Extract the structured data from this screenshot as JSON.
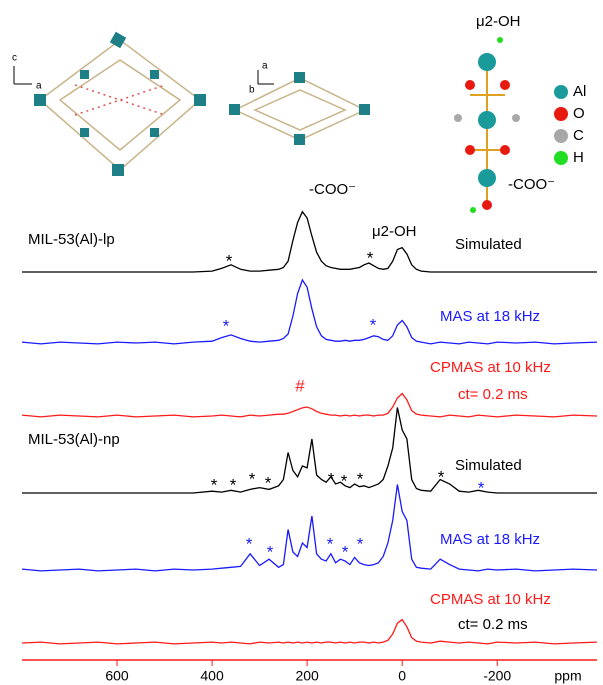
{
  "chart_data": {
    "type": "line",
    "x": [
      800,
      760,
      720,
      680,
      640,
      600,
      560,
      520,
      480,
      440,
      400,
      380,
      360,
      340,
      320,
      300,
      280,
      260,
      250,
      240,
      230,
      220,
      210,
      200,
      190,
      180,
      170,
      160,
      150,
      140,
      130,
      120,
      110,
      100,
      90,
      80,
      70,
      60,
      50,
      40,
      30,
      20,
      10,
      0,
      -10,
      -20,
      -30,
      -40,
      -60,
      -80,
      -100,
      -120,
      -140,
      -160,
      -180,
      -200,
      -240,
      -280,
      -320,
      -360,
      -410
    ],
    "xlim": [
      800,
      -410
    ],
    "xticks": [
      600,
      400,
      200,
      0,
      -200
    ],
    "xlabel": "ppm",
    "series": [
      {
        "name": "Simulated",
        "color": "#000000",
        "values": [
          0,
          0,
          0,
          0,
          0,
          0,
          0,
          0,
          0,
          0,
          1,
          4,
          8,
          3,
          1,
          1,
          2,
          3,
          5,
          12,
          35,
          55,
          67,
          60,
          40,
          22,
          12,
          7,
          5,
          4,
          3,
          3,
          3,
          4,
          5,
          8,
          10,
          7,
          4,
          3,
          4,
          12,
          25,
          27,
          20,
          8,
          3,
          1,
          0,
          0,
          0,
          0,
          0,
          0,
          0,
          0,
          0,
          0,
          0,
          0,
          0
        ]
      },
      {
        "name": "MAS at 18 kHz",
        "color": "#1a1aff",
        "values": [
          1,
          -1,
          1,
          0,
          -1,
          1,
          0,
          1,
          -1,
          1,
          2,
          6,
          9,
          5,
          2,
          1,
          2,
          3,
          5,
          10,
          30,
          55,
          70,
          62,
          38,
          18,
          8,
          4,
          3,
          2,
          2,
          3,
          2,
          3,
          3,
          4,
          6,
          8,
          7,
          4,
          3,
          8,
          20,
          25,
          18,
          6,
          2,
          1,
          -1,
          1,
          0,
          -1,
          1,
          0,
          -1,
          1,
          0,
          1,
          -1,
          0,
          1
        ]
      },
      {
        "name": "CPMAS at 10 kHz",
        "color": "#ff1a1a",
        "values": [
          1,
          -1,
          1,
          0,
          -1,
          1,
          -1,
          0,
          1,
          -1,
          0,
          1,
          0,
          -1,
          1,
          0,
          1,
          2,
          2,
          3,
          5,
          7,
          9,
          10,
          8,
          5,
          3,
          2,
          1,
          1,
          0,
          1,
          0,
          1,
          0,
          1,
          1,
          0,
          1,
          1,
          3,
          10,
          20,
          25,
          18,
          6,
          2,
          1,
          0,
          -1,
          1,
          0,
          -1,
          1,
          0,
          -1,
          1,
          0,
          -1,
          1,
          0
        ]
      },
      {
        "name": "Simulated",
        "color": "#000000",
        "values": [
          0,
          0,
          0,
          0,
          0,
          0,
          0,
          0,
          0,
          0,
          2,
          1,
          3,
          1,
          4,
          6,
          4,
          8,
          15,
          45,
          25,
          18,
          30,
          28,
          60,
          20,
          15,
          12,
          18,
          10,
          12,
          8,
          6,
          10,
          7,
          8,
          6,
          8,
          10,
          15,
          30,
          50,
          95,
          70,
          60,
          15,
          5,
          3,
          2,
          15,
          10,
          2,
          1,
          3,
          1,
          0,
          0,
          0,
          0,
          0,
          0
        ]
      },
      {
        "name": "MAS at 18 kHz",
        "color": "#1a1aff",
        "values": [
          1,
          -1,
          0,
          1,
          -1,
          0,
          1,
          -1,
          1,
          0,
          1,
          2,
          3,
          4,
          18,
          5,
          12,
          3,
          6,
          45,
          20,
          15,
          30,
          25,
          60,
          18,
          12,
          10,
          18,
          8,
          12,
          10,
          6,
          14,
          8,
          6,
          5,
          6,
          8,
          15,
          30,
          55,
          95,
          65,
          55,
          12,
          3,
          2,
          1,
          12,
          6,
          1,
          0,
          -1,
          1,
          0,
          1,
          -1,
          0,
          1,
          0
        ]
      },
      {
        "name": "CPMAS at 10 kHz",
        "color": "#ff1a1a",
        "values": [
          0,
          1,
          -1,
          0,
          1,
          -1,
          0,
          1,
          -1,
          0,
          1,
          0,
          1,
          0,
          -1,
          1,
          0,
          1,
          0,
          1,
          0,
          1,
          0,
          1,
          0,
          1,
          0,
          1,
          1,
          0,
          1,
          0,
          1,
          0,
          1,
          1,
          0,
          1,
          0,
          1,
          3,
          10,
          22,
          26,
          18,
          6,
          2,
          1,
          0,
          2,
          1,
          0,
          1,
          0,
          -1,
          1,
          0,
          1,
          -1,
          0,
          1
        ]
      }
    ],
    "annotations": [
      {
        "text": "-COO⁻",
        "color": "#000000"
      },
      {
        "text": "μ2-OH",
        "color": "#000000"
      },
      {
        "text": "MIL-53(Al)-lp",
        "color": "#000000"
      },
      {
        "text": "ct= 0.2 ms",
        "color": "#ff1a1a"
      },
      {
        "text": "MIL-53(Al)-np",
        "color": "#000000"
      },
      {
        "text": "ct= 0.2 ms",
        "color": "#000000"
      },
      {
        "text": "*",
        "color": "#000000"
      },
      {
        "text": "*",
        "color": "#000000"
      },
      {
        "text": "*",
        "color": "#1a1aff"
      },
      {
        "text": "*",
        "color": "#1a1aff"
      },
      {
        "text": "#",
        "color": "#ff1a1a"
      },
      {
        "text": "*",
        "color": "#000000"
      },
      {
        "text": "*",
        "color": "#000000"
      },
      {
        "text": "*",
        "color": "#000000"
      },
      {
        "text": "*",
        "color": "#000000"
      },
      {
        "text": "*",
        "color": "#000000"
      },
      {
        "text": "*",
        "color": "#000000"
      },
      {
        "text": "*",
        "color": "#000000"
      },
      {
        "text": "*",
        "color": "#000000"
      },
      {
        "text": "*",
        "color": "#1a1aff"
      },
      {
        "text": "*",
        "color": "#1a1aff"
      },
      {
        "text": "*",
        "color": "#1a1aff"
      },
      {
        "text": "*",
        "color": "#1a1aff"
      },
      {
        "text": "*",
        "color": "#1a1aff"
      },
      {
        "text": "*",
        "color": "#1a1aff"
      }
    ]
  },
  "structure": {
    "axes1": [
      "c",
      "a"
    ],
    "axes2": [
      "a",
      "b"
    ],
    "top_label": "μ2-OH",
    "bottom_label": "-COO⁻",
    "legend": [
      {
        "label": "Al",
        "color": "#1a9a9a"
      },
      {
        "label": "O",
        "color": "#e8190f"
      },
      {
        "label": "C",
        "color": "#a8a8a8"
      },
      {
        "label": "H",
        "color": "#22dd22"
      }
    ]
  }
}
